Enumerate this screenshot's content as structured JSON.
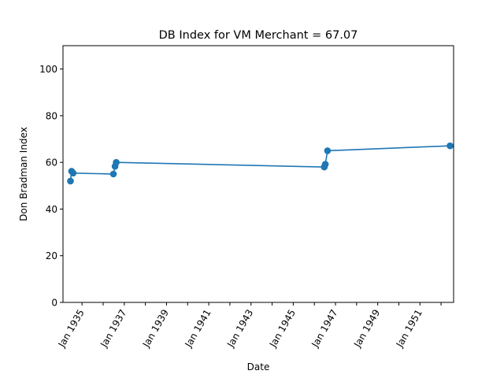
{
  "chart_data": {
    "type": "line",
    "title": "DB Index for VM Merchant = 67.07",
    "xlabel": "Date",
    "ylabel": "Don Bradman Index",
    "ylim": [
      0,
      110
    ],
    "xlim": [
      "1934-02-06",
      "1952-08-05"
    ],
    "yticks": [
      0,
      20,
      40,
      60,
      80,
      100
    ],
    "xticks": [
      {
        "date": "1935-01-01",
        "label": "Jan 1935"
      },
      {
        "date": "1936-01-01",
        "label": ""
      },
      {
        "date": "1937-01-01",
        "label": "Jan 1937"
      },
      {
        "date": "1938-01-01",
        "label": ""
      },
      {
        "date": "1939-01-01",
        "label": "Jan 1939"
      },
      {
        "date": "1940-01-01",
        "label": ""
      },
      {
        "date": "1941-01-01",
        "label": "Jan 1941"
      },
      {
        "date": "1942-01-01",
        "label": ""
      },
      {
        "date": "1943-01-01",
        "label": "Jan 1943"
      },
      {
        "date": "1944-01-01",
        "label": ""
      },
      {
        "date": "1945-01-01",
        "label": "Jan 1945"
      },
      {
        "date": "1946-01-01",
        "label": ""
      },
      {
        "date": "1947-01-01",
        "label": "Jan 1947"
      },
      {
        "date": "1948-01-01",
        "label": ""
      },
      {
        "date": "1949-01-01",
        "label": "Jan 1949"
      },
      {
        "date": "1950-01-01",
        "label": ""
      },
      {
        "date": "1951-01-01",
        "label": "Jan 1951"
      },
      {
        "date": "1952-01-01",
        "label": ""
      }
    ],
    "grid": false,
    "color": "#1f77b4",
    "series": [
      {
        "x": [
          "1934-06-15",
          "1934-07-05",
          "1934-08-01",
          "1936-06-27",
          "1936-07-25",
          "1936-08-15",
          "1946-06-22",
          "1946-07-10",
          "1946-08-17",
          "1952-06-05"
        ],
        "y": [
          52.0,
          56.2,
          55.4,
          55.0,
          58.3,
          60.0,
          58.0,
          59.2,
          65.0,
          67.07
        ]
      }
    ]
  }
}
